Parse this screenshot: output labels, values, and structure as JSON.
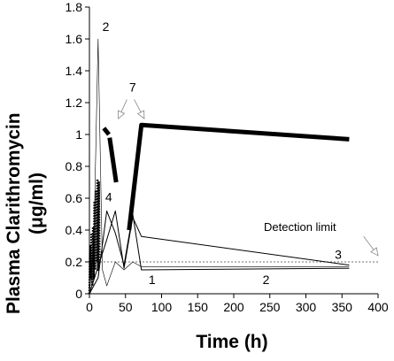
{
  "chart_data": {
    "type": "line",
    "title": "",
    "xlabel": "Time (h)",
    "ylabel_line1": "Plasma Clarithromycin",
    "ylabel_line2": "(μg/ml)",
    "xlim": [
      0,
      400
    ],
    "ylim": [
      0,
      1.8
    ],
    "x_ticks": [
      0,
      50,
      100,
      150,
      200,
      250,
      300,
      350,
      400
    ],
    "y_ticks": [
      0,
      0.2,
      0.4,
      0.6,
      0.8,
      1,
      1.2,
      1.4,
      1.6,
      1.8
    ],
    "x_tick_labels": [
      "0",
      "50",
      "100",
      "150",
      "200",
      "250",
      "300",
      "350",
      "400"
    ],
    "y_tick_labels": [
      "0",
      "0.2",
      "0.4",
      "0.6",
      "0.8",
      "1",
      "1.2",
      "1.4",
      "1.6",
      "1.8"
    ],
    "grid": false,
    "legend": "none",
    "detection_limit": {
      "value": 0.2,
      "label": "Detection limit"
    },
    "series": [
      {
        "label": "1",
        "color": "#000000",
        "weight": "thin",
        "x": [
          0,
          12,
          24,
          36,
          48,
          60,
          72,
          360
        ],
        "y": [
          0,
          0.1,
          0.52,
          0.38,
          0.18,
          0.5,
          0.15,
          0.16
        ]
      },
      {
        "label": "2",
        "color": "#000000",
        "weight": "hair",
        "x": [
          0,
          6,
          12,
          18,
          24,
          36,
          48,
          60,
          72,
          360
        ],
        "y": [
          0,
          0.3,
          1.6,
          0.15,
          0.05,
          0.2,
          0.15,
          0.2,
          0.17,
          0.17
        ]
      },
      {
        "label": "3",
        "color": "#000000",
        "weight": "thin",
        "x": [
          0,
          24,
          36,
          48,
          60,
          72,
          360
        ],
        "y": [
          0,
          0.34,
          0.52,
          0.16,
          0.48,
          0.36,
          0.18
        ]
      },
      {
        "label": "4",
        "color": "#000000",
        "weight": "dotted-thick",
        "x": [
          0,
          1,
          2,
          3,
          4,
          5,
          6,
          7,
          8,
          9,
          10,
          11,
          12,
          13,
          14
        ],
        "y": [
          0,
          0.3,
          0.1,
          0.38,
          0.05,
          0.42,
          0.1,
          0.58,
          0.15,
          0.65,
          0.2,
          0.72,
          0.15,
          0.7,
          0.2
        ]
      },
      {
        "label": "7",
        "color": "#000000",
        "weight": "heavy",
        "segments": [
          {
            "x": [
              20,
              27
            ],
            "y": [
              1.04,
              1.0
            ]
          },
          {
            "x": [
              28,
              37
            ],
            "y": [
              0.98,
              0.7
            ]
          },
          {
            "x": [
              55,
              72,
              360
            ],
            "y": [
              0.4,
              1.06,
              0.97
            ]
          }
        ]
      }
    ],
    "annotations": [
      {
        "text": "2",
        "x": 18,
        "y": 1.65
      },
      {
        "text": "7",
        "x": 55,
        "y": 1.27
      },
      {
        "text": "4",
        "x": 22,
        "y": 0.58
      },
      {
        "text": "1",
        "x": 82,
        "y": 0.06
      },
      {
        "text": "2",
        "x": 240,
        "y": 0.06
      },
      {
        "text": "3",
        "x": 340,
        "y": 0.22
      }
    ]
  }
}
